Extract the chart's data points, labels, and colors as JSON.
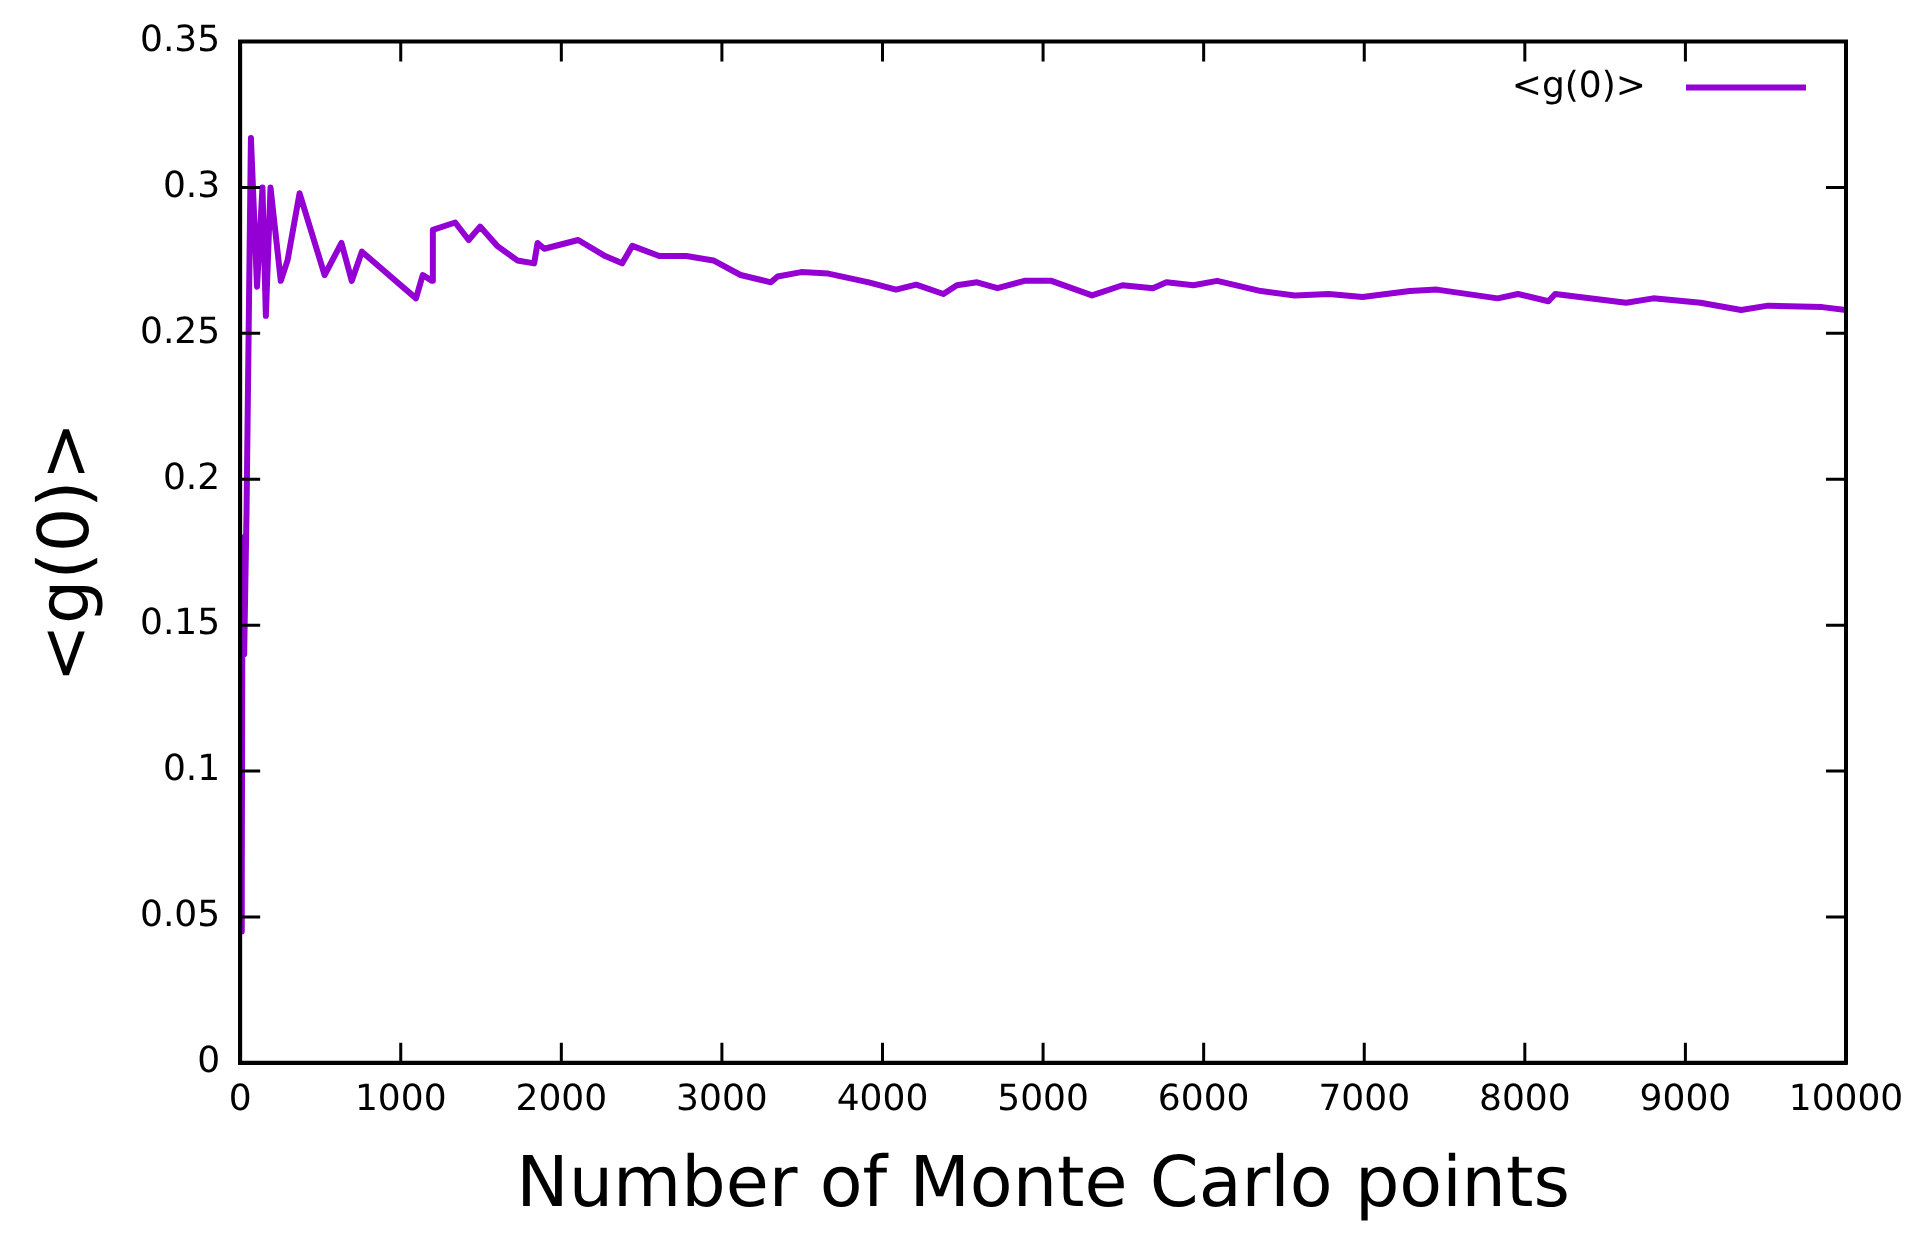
{
  "chart_data": {
    "type": "line",
    "xlabel": "Number of Monte Carlo points",
    "ylabel": "<g(0)>",
    "legend": "top right",
    "grid": false,
    "marker": "none",
    "line_style": "solid",
    "xlim": [
      0,
      10000
    ],
    "xticks": [
      0,
      1000,
      2000,
      3000,
      4000,
      5000,
      6000,
      7000,
      8000,
      9000,
      10000
    ],
    "ylim": [
      0,
      0.35
    ],
    "yticks": [
      0,
      0.05,
      0.1,
      0.15,
      0.2,
      0.25,
      0.3,
      0.35
    ],
    "x": [
      0,
      10,
      15,
      25,
      40,
      67,
      105,
      139,
      160,
      189,
      253,
      295,
      370,
      526,
      631,
      695,
      758,
      863,
      1095,
      1137,
      1195,
      1200,
      1339,
      1423,
      1494,
      1600,
      1726,
      1831,
      1852,
      1894,
      2105,
      2273,
      2379,
      2442,
      2610,
      2779,
      2947,
      3116,
      3305,
      3347,
      3494,
      3663,
      3915,
      4084,
      4210,
      4379,
      4463,
      4589,
      4716,
      4884,
      5052,
      5305,
      5494,
      5684,
      5768,
      5936,
      6084,
      6357,
      6568,
      6779,
      6989,
      7284,
      7452,
      7831,
      7957,
      8147,
      8189,
      8631,
      8800,
      9094,
      9347,
      9515,
      9852,
      10000
    ],
    "series": [
      {
        "name": "<g(0)>",
        "color": "#9400d3",
        "values": [
          0.045,
          0.06,
          0.18,
          0.14,
          0.19,
          0.317,
          0.266,
          0.3,
          0.256,
          0.3,
          0.268,
          0.275,
          0.298,
          0.27,
          0.281,
          0.268,
          0.278,
          0.273,
          0.262,
          0.27,
          0.268,
          0.2855,
          0.288,
          0.282,
          0.2866,
          0.28,
          0.275,
          0.274,
          0.281,
          0.279,
          0.282,
          0.2765,
          0.274,
          0.28,
          0.2765,
          0.2765,
          0.275,
          0.27,
          0.2675,
          0.2695,
          0.271,
          0.2705,
          0.2675,
          0.265,
          0.2667,
          0.2635,
          0.2665,
          0.2675,
          0.2655,
          0.268,
          0.268,
          0.263,
          0.2665,
          0.2655,
          0.2675,
          0.2665,
          0.268,
          0.2645,
          0.263,
          0.2635,
          0.2625,
          0.2645,
          0.265,
          0.262,
          0.2635,
          0.261,
          0.2635,
          0.2605,
          0.262,
          0.2605,
          0.258,
          0.2595,
          0.259,
          0.258
        ]
      }
    ]
  }
}
